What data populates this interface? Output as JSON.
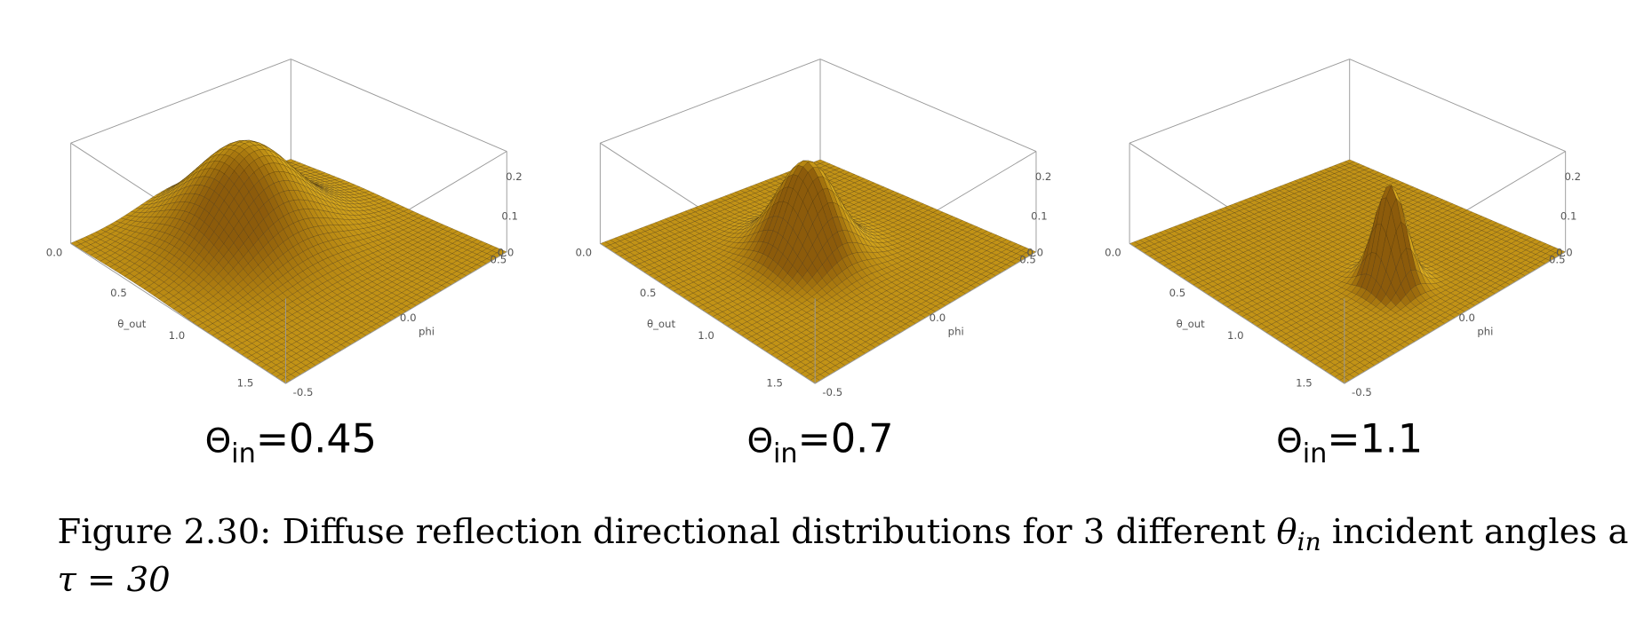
{
  "panels": [
    {
      "label": {
        "symbol": "Θ",
        "subscript": "in",
        "value": "=0.45"
      },
      "axes": {
        "x_label": "θ_out",
        "y_label": "phi",
        "x_ticks": [
          "0.0",
          "0.5",
          "1.0",
          "1.5"
        ],
        "y_ticks": [
          "-0.5",
          "0.0",
          "0.5"
        ],
        "z_ticks": [
          "0.0",
          "0.1",
          "0.2"
        ]
      }
    },
    {
      "label": {
        "symbol": "Θ",
        "subscript": "in",
        "value": "=0.7"
      },
      "axes": {
        "x_label": "θ_out",
        "y_label": "phi",
        "x_ticks": [
          "0.0",
          "0.5",
          "1.0",
          "1.5"
        ],
        "y_ticks": [
          "-0.5",
          "0.0",
          "0.5"
        ],
        "z_ticks": [
          "0.0",
          "0.1",
          "0.2"
        ]
      }
    },
    {
      "label": {
        "symbol": "Θ",
        "subscript": "in",
        "value": "=1.1"
      },
      "axes": {
        "x_label": "θ_out",
        "y_label": "phi",
        "x_ticks": [
          "0.0",
          "0.5",
          "1.0",
          "1.5"
        ],
        "y_ticks": [
          "-0.5",
          "0.0",
          "0.5"
        ],
        "z_ticks": [
          "0.0",
          "0.1",
          "0.2"
        ]
      }
    }
  ],
  "caption": {
    "text": "Figure 2.30: Diffuse reflection directional distributions for 3 different ",
    "symbol": "θ",
    "subscript": "in",
    "text_end": " incident angles at",
    "line2": "τ = 30"
  }
}
